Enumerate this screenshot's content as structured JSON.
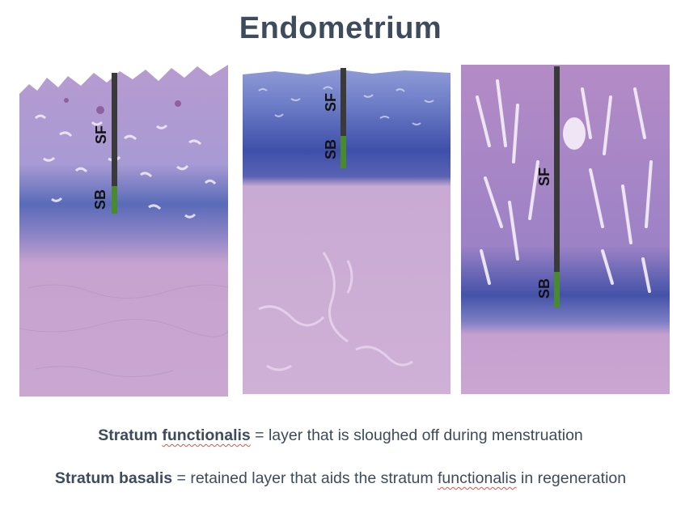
{
  "title": "Endometrium",
  "panels": [
    {
      "upper_label": "SF",
      "lower_label": "SB"
    },
    {
      "upper_label": "SF",
      "lower_label": "SB"
    },
    {
      "upper_label": "SF",
      "lower_label": "SB"
    }
  ],
  "colors": {
    "title": "#3d4b5c",
    "functionalis_bar": "#3a3a3a",
    "basalis_bar": "#4a8a2e",
    "tissue_stroma": "#c9a2cf",
    "tissue_basal": "#5565b3"
  },
  "captions": [
    {
      "bold": "Stratum ",
      "bold_underlined": "functionalis",
      "text": " = layer that is sloughed off during menstruation"
    },
    {
      "bold": "Stratum basalis",
      "text_before": " = retained layer that aids the stratum ",
      "underlined": "functionalis",
      "text_after": " in regeneration"
    }
  ]
}
